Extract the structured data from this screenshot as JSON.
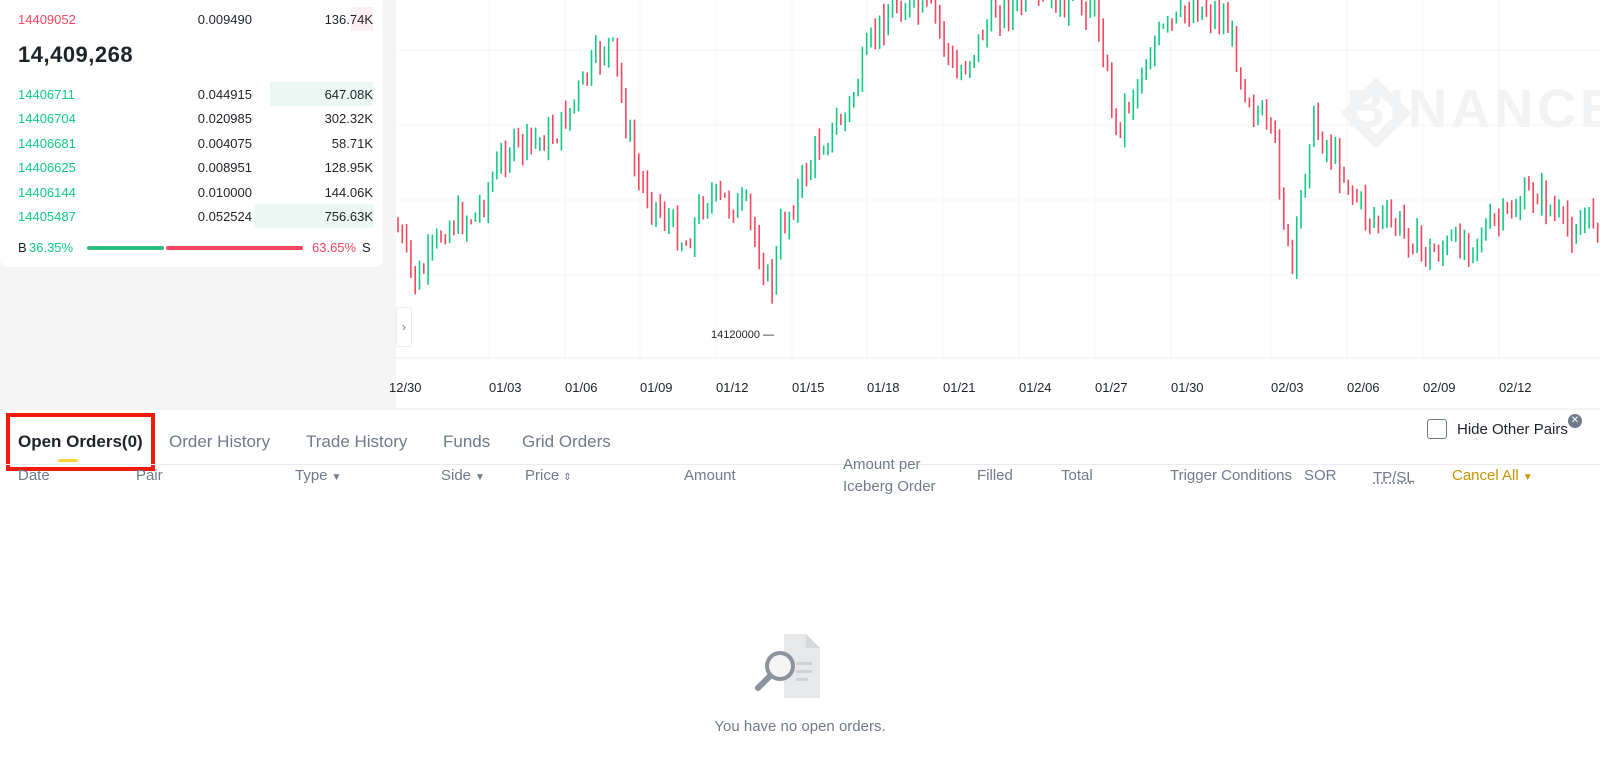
{
  "orderbook": {
    "asks": [
      {
        "price": "14409052",
        "amount": "0.009490",
        "total": "136.74K",
        "depth": 0.06
      }
    ],
    "mid_price": "14,409,268",
    "bids": [
      {
        "price": "14406711",
        "amount": "0.044915",
        "total": "647.08K",
        "depth": 0.28
      },
      {
        "price": "14406704",
        "amount": "0.020985",
        "total": "302.32K",
        "depth": 0
      },
      {
        "price": "14406681",
        "amount": "0.004075",
        "total": "58.71K",
        "depth": 0
      },
      {
        "price": "14406625",
        "amount": "0.008951",
        "total": "128.95K",
        "depth": 0
      },
      {
        "price": "14406144",
        "amount": "0.010000",
        "total": "144.06K",
        "depth": 0
      },
      {
        "price": "14405487",
        "amount": "0.052524",
        "total": "756.63K",
        "depth": 0.33
      }
    ],
    "buy_label": "B",
    "buy_percent": "36.35%",
    "sell_percent": "63.65%",
    "sell_label": "S"
  },
  "chart": {
    "toggle_icon": "chevron-right-icon",
    "low_label": "14120000",
    "watermark": "BINANCE",
    "x_labels": [
      "12/30",
      "01/03",
      "01/06",
      "01/09",
      "01/12",
      "01/15",
      "01/18",
      "01/21",
      "01/24",
      "01/27",
      "01/30",
      "02/03",
      "02/06",
      "02/09",
      "02/12"
    ],
    "up_color": "#0ecb81",
    "down_color": "#f6465d"
  },
  "orders": {
    "tabs": [
      {
        "label": "Open Orders(0)",
        "active": true
      },
      {
        "label": "Order History",
        "active": false
      },
      {
        "label": "Trade History",
        "active": false
      },
      {
        "label": "Funds",
        "active": false
      },
      {
        "label": "Grid Orders",
        "active": false
      }
    ],
    "hide_other_pairs": "Hide Other Pairs",
    "columns": {
      "date": "Date",
      "pair": "Pair",
      "type": "Type",
      "side": "Side",
      "price": "Price",
      "amount": "Amount",
      "iceberg_1": "Amount per",
      "iceberg_2": "Iceberg Order",
      "filled": "Filled",
      "total": "Total",
      "trigger": "Trigger Conditions",
      "sor": "SOR",
      "tpsl": "TP/SL",
      "cancel_all": "Cancel All"
    },
    "empty_message": "You have no open orders.",
    "accent_color": "#fcd535",
    "highlight_color": "#f21b0b"
  }
}
